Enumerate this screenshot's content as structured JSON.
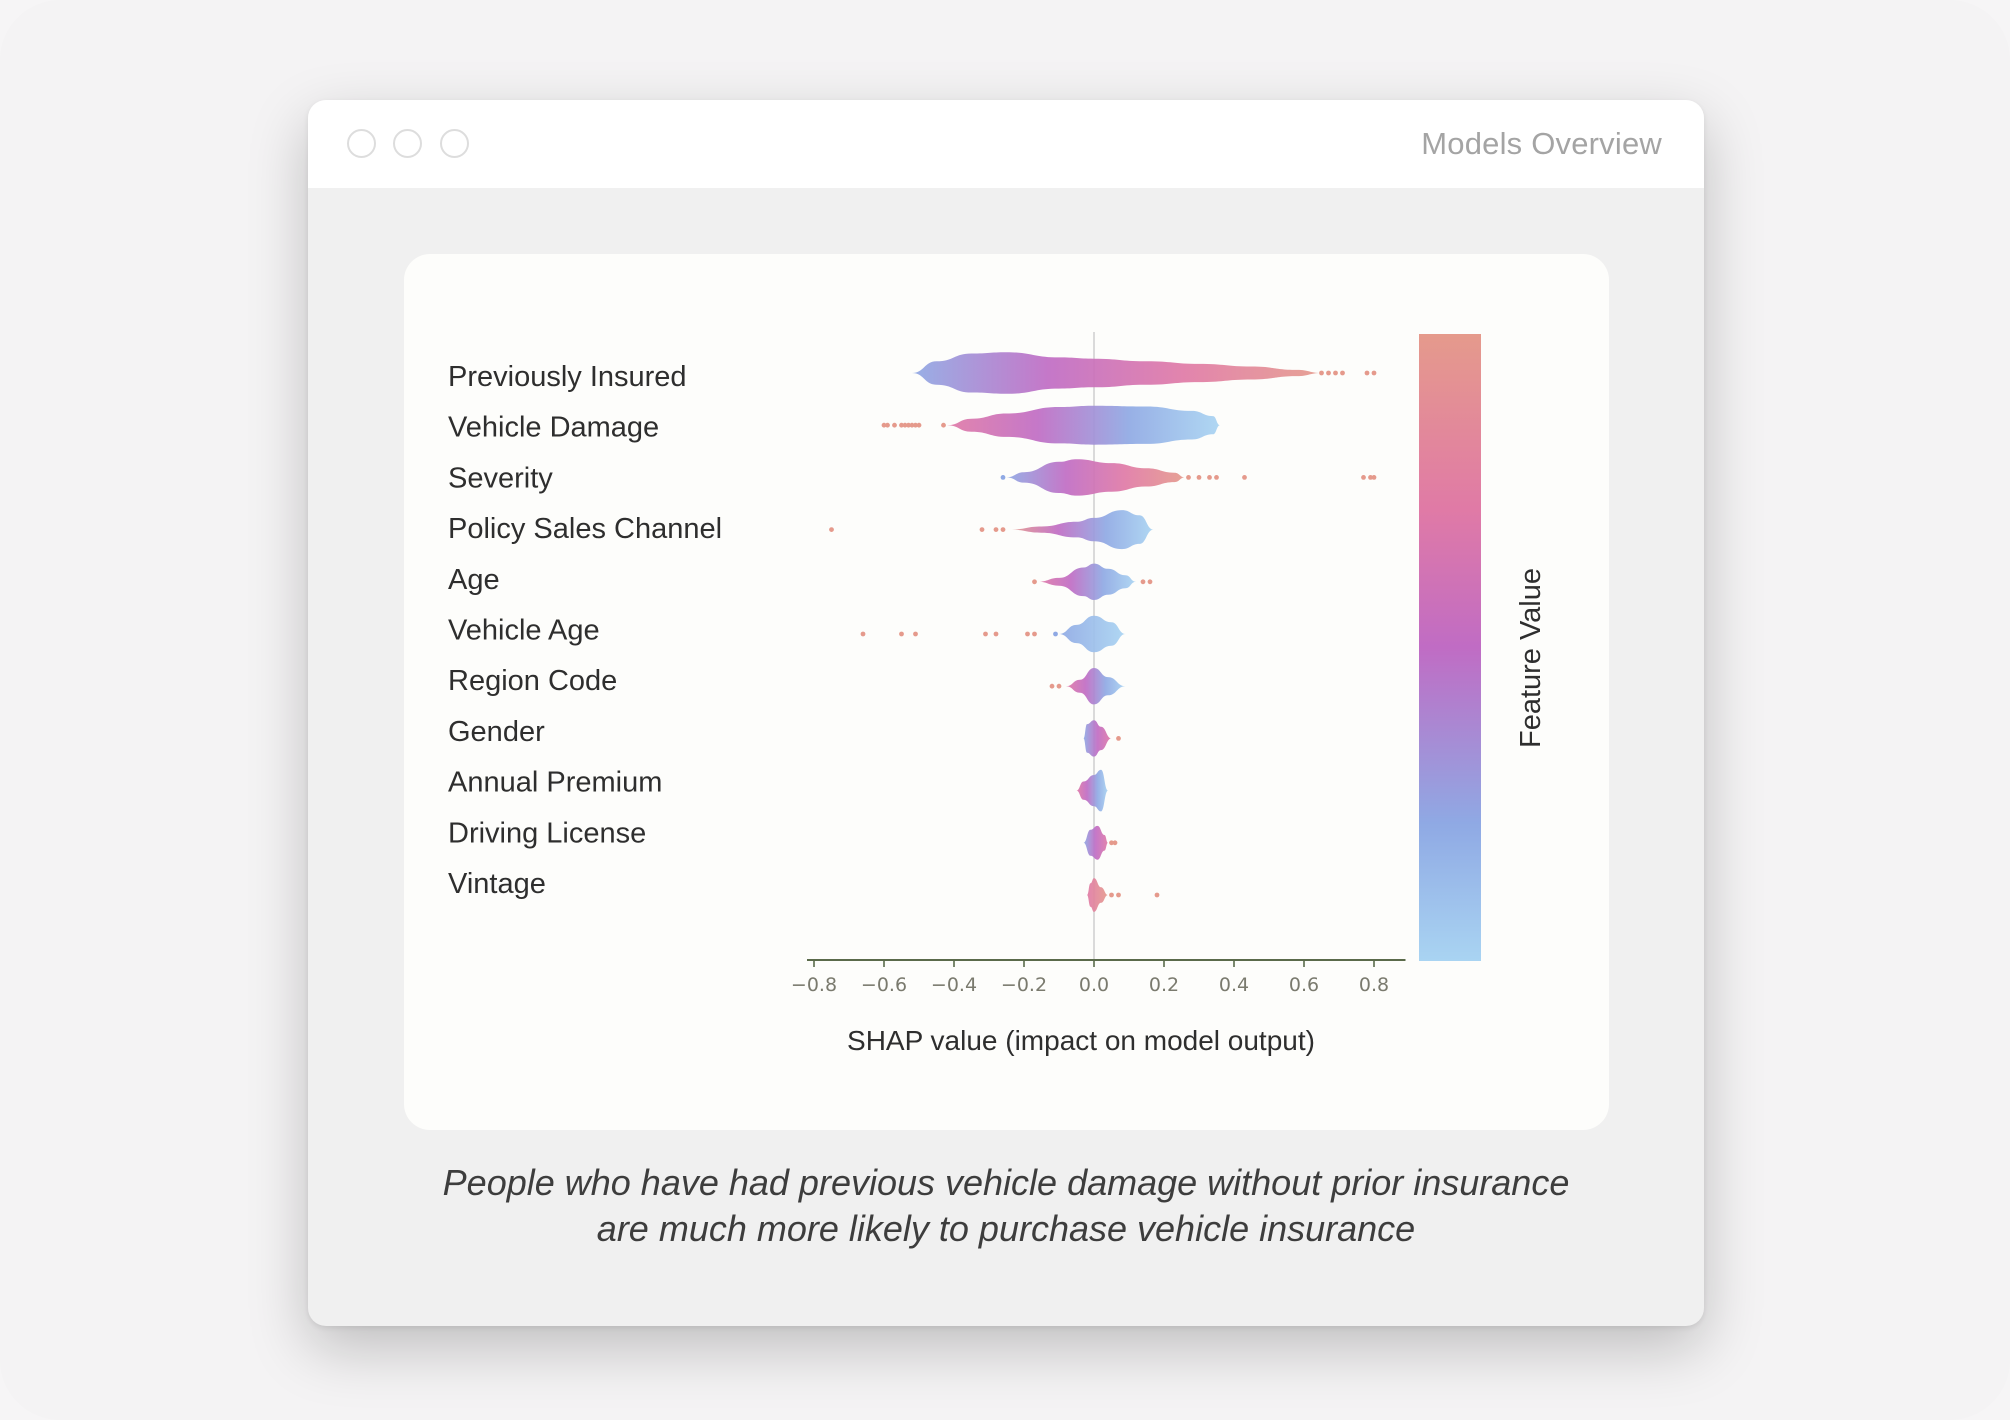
{
  "window": {
    "title": "Models Overview",
    "controls": [
      "close",
      "minimize",
      "zoom"
    ]
  },
  "caption": {
    "line1": "People who have had previous vehicle damage without prior insurance",
    "line2": "are much more likely to purchase vehicle insurance"
  },
  "colors": {
    "low": "#a9d4f2",
    "mid_blue": "#8fa9e4",
    "purple": "#c06cc4",
    "pink": "#e07aa6",
    "high": "#e59a8c",
    "axis": "#5a6a4a",
    "tick_text": "#7a7a6e"
  },
  "chart_data": {
    "type": "violin",
    "xlabel": "SHAP value (impact on model output)",
    "colorbar_label": "Feature Value",
    "xlim": [
      -0.82,
      0.89
    ],
    "xticks": [
      -0.8,
      -0.6,
      -0.4,
      -0.2,
      0.0,
      0.2,
      0.4,
      0.6,
      0.8
    ],
    "xtick_labels": [
      "−0.8",
      "−0.6",
      "−0.4",
      "−0.2",
      "0.0",
      "0.2",
      "0.4",
      "0.6",
      "0.8"
    ],
    "features": [
      {
        "name": "Previously Insured",
        "range": [
          -0.52,
          0.65
        ],
        "gradient": [
          "mid_blue",
          "purple",
          "pink",
          "high"
        ],
        "profile": [
          [
            -0.52,
            0.0
          ],
          [
            -0.45,
            0.45
          ],
          [
            -0.35,
            0.75
          ],
          [
            -0.25,
            0.8
          ],
          [
            -0.1,
            0.6
          ],
          [
            0.0,
            0.55
          ],
          [
            0.15,
            0.45
          ],
          [
            0.3,
            0.35
          ],
          [
            0.45,
            0.25
          ],
          [
            0.58,
            0.12
          ],
          [
            0.65,
            0.0
          ]
        ],
        "outliers": [
          0.65,
          0.67,
          0.69,
          0.71,
          0.78,
          0.8
        ]
      },
      {
        "name": "Vehicle Damage",
        "range": [
          -0.42,
          0.36
        ],
        "gradient": [
          "pink",
          "purple",
          "mid_blue",
          "low"
        ],
        "profile": [
          [
            -0.42,
            0.0
          ],
          [
            -0.35,
            0.25
          ],
          [
            -0.25,
            0.45
          ],
          [
            -0.1,
            0.7
          ],
          [
            0.0,
            0.75
          ],
          [
            0.15,
            0.72
          ],
          [
            0.28,
            0.55
          ],
          [
            0.34,
            0.35
          ],
          [
            0.36,
            0.0
          ]
        ],
        "outliers": [
          -0.6,
          -0.59,
          -0.57,
          -0.55,
          -0.54,
          -0.53,
          -0.52,
          -0.51,
          -0.5,
          -0.43
        ]
      },
      {
        "name": "Severity",
        "range": [
          -0.25,
          0.26
        ],
        "gradient": [
          "mid_blue",
          "purple",
          "pink",
          "high"
        ],
        "profile": [
          [
            -0.25,
            0.0
          ],
          [
            -0.2,
            0.2
          ],
          [
            -0.1,
            0.6
          ],
          [
            -0.05,
            0.7
          ],
          [
            0.05,
            0.55
          ],
          [
            0.15,
            0.35
          ],
          [
            0.23,
            0.18
          ],
          [
            0.26,
            0.0
          ]
        ],
        "outliers": [
          -0.26,
          0.27,
          0.3,
          0.33,
          0.35,
          0.43,
          0.77,
          0.79,
          0.8
        ]
      },
      {
        "name": "Policy Sales Channel",
        "range": [
          -0.24,
          0.17
        ],
        "gradient": [
          "high",
          "purple",
          "mid_blue",
          "low"
        ],
        "profile": [
          [
            -0.24,
            0.0
          ],
          [
            -0.15,
            0.12
          ],
          [
            -0.05,
            0.3
          ],
          [
            0.0,
            0.45
          ],
          [
            0.08,
            0.75
          ],
          [
            0.13,
            0.55
          ],
          [
            0.17,
            0.0
          ]
        ],
        "outliers": [
          -0.75,
          -0.32,
          -0.28,
          -0.26
        ]
      },
      {
        "name": "Age",
        "range": [
          -0.16,
          0.12
        ],
        "gradient": [
          "pink",
          "purple",
          "mid_blue",
          "low"
        ],
        "profile": [
          [
            -0.16,
            0.0
          ],
          [
            -0.1,
            0.15
          ],
          [
            -0.03,
            0.55
          ],
          [
            0.0,
            0.7
          ],
          [
            0.04,
            0.5
          ],
          [
            0.09,
            0.25
          ],
          [
            0.12,
            0.0
          ]
        ],
        "outliers": [
          -0.17,
          0.14,
          0.16
        ]
      },
      {
        "name": "Vehicle Age",
        "range": [
          -0.1,
          0.09
        ],
        "gradient": [
          "mid_blue",
          "low"
        ],
        "profile": [
          [
            -0.1,
            0.0
          ],
          [
            -0.05,
            0.35
          ],
          [
            0.0,
            0.7
          ],
          [
            0.05,
            0.45
          ],
          [
            0.09,
            0.0
          ]
        ],
        "outliers": [
          -0.66,
          -0.55,
          -0.51,
          -0.31,
          -0.28,
          -0.19,
          -0.17,
          -0.11
        ]
      },
      {
        "name": "Region Code",
        "range": [
          -0.08,
          0.09
        ],
        "gradient": [
          "pink",
          "purple",
          "mid_blue",
          "low"
        ],
        "profile": [
          [
            -0.08,
            0.0
          ],
          [
            -0.04,
            0.25
          ],
          [
            0.0,
            0.7
          ],
          [
            0.04,
            0.35
          ],
          [
            0.09,
            0.0
          ]
        ],
        "outliers": [
          -0.12,
          -0.1
        ]
      },
      {
        "name": "Gender",
        "range": [
          -0.03,
          0.05
        ],
        "gradient": [
          "mid_blue",
          "purple",
          "pink"
        ],
        "profile": [
          [
            -0.03,
            0.0
          ],
          [
            -0.02,
            0.55
          ],
          [
            0.0,
            0.7
          ],
          [
            0.02,
            0.45
          ],
          [
            0.05,
            0.0
          ]
        ],
        "outliers": [
          0.07
        ]
      },
      {
        "name": "Annual Premium",
        "range": [
          -0.05,
          0.04
        ],
        "gradient": [
          "pink",
          "purple",
          "mid_blue",
          "low"
        ],
        "profile": [
          [
            -0.05,
            0.0
          ],
          [
            -0.03,
            0.35
          ],
          [
            0.0,
            0.6
          ],
          [
            0.02,
            0.8
          ],
          [
            0.04,
            0.0
          ]
        ],
        "outliers": []
      },
      {
        "name": "Driving License",
        "range": [
          -0.03,
          0.04
        ],
        "gradient": [
          "mid_blue",
          "purple",
          "pink"
        ],
        "profile": [
          [
            -0.03,
            0.0
          ],
          [
            -0.01,
            0.5
          ],
          [
            0.01,
            0.65
          ],
          [
            0.03,
            0.3
          ],
          [
            0.04,
            0.0
          ]
        ],
        "outliers": [
          0.05,
          0.06
        ]
      },
      {
        "name": "Vintage",
        "range": [
          -0.02,
          0.04
        ],
        "gradient": [
          "pink",
          "high"
        ],
        "profile": [
          [
            -0.02,
            0.0
          ],
          [
            -0.01,
            0.45
          ],
          [
            0.0,
            0.65
          ],
          [
            0.02,
            0.3
          ],
          [
            0.04,
            0.0
          ]
        ],
        "outliers": [
          0.05,
          0.07,
          0.18
        ]
      }
    ]
  }
}
